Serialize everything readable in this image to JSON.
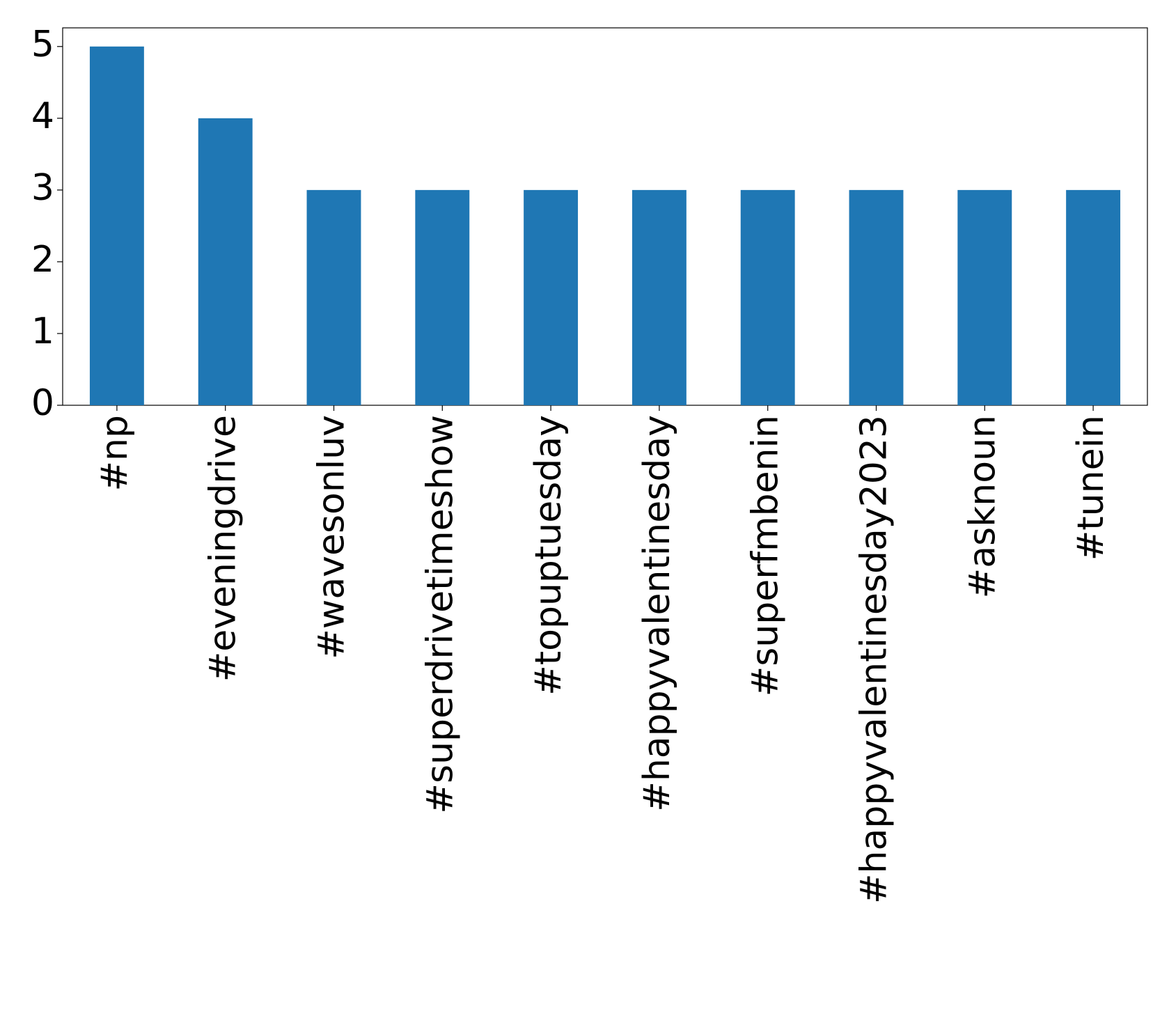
{
  "chart_data": {
    "type": "bar",
    "categories": [
      "#np",
      "#eveningdrive",
      "#wavesonluv",
      "#superdrivetimeshow",
      "#topuptuesday",
      "#happyvalentinesday",
      "#superfmbenin",
      "#happyvalentinesday2023",
      "#asknoun",
      "#tunein"
    ],
    "values": [
      5,
      4,
      3,
      3,
      3,
      3,
      3,
      3,
      3,
      3
    ],
    "color": "#1f77b4",
    "ylim": [
      0,
      5.26
    ],
    "yticks": [
      0,
      1,
      2,
      3,
      4,
      5
    ],
    "grid": false
  }
}
